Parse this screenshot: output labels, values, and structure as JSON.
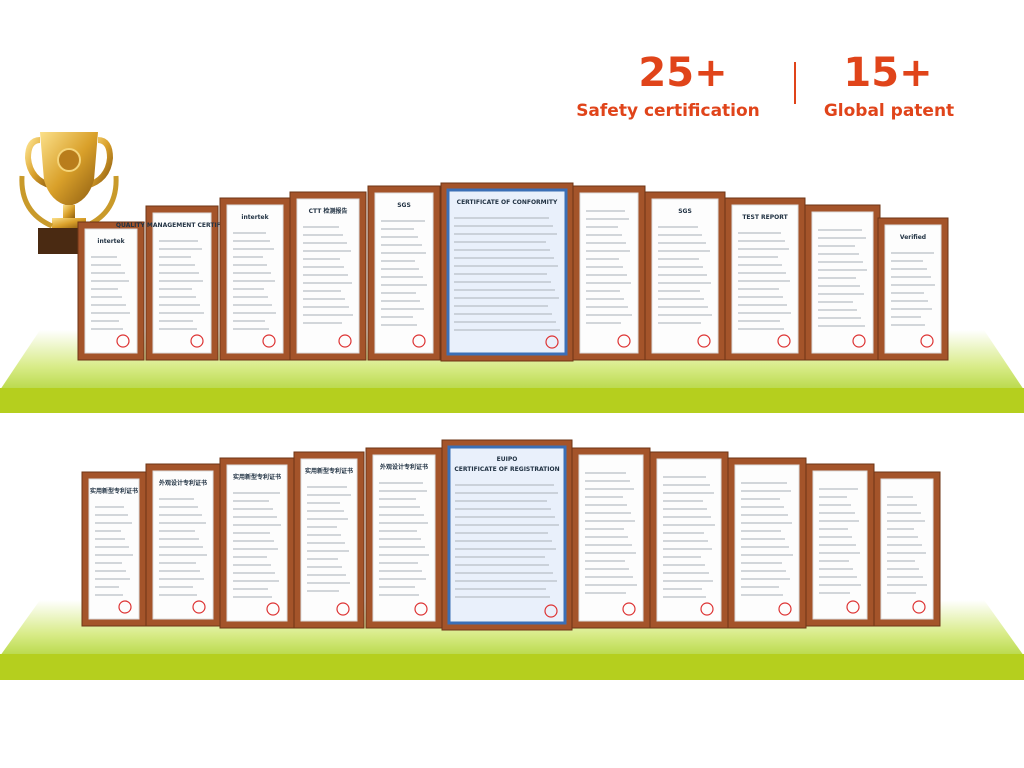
{
  "stats": [
    {
      "value": "25+",
      "label": "Safety certification"
    },
    {
      "value": "15+",
      "label": "Global patent"
    }
  ],
  "shelf_1": {
    "certificates": [
      "intertek",
      "QUALITY MANAGEMENT CERTIFICATION",
      "intertek",
      "CTT 检测报告",
      "SGS",
      "CERTIFICATE OF CONFORMITY",
      "SGS",
      "TEST REPORT",
      "Verified"
    ]
  },
  "shelf_2": {
    "certificates": [
      "实用新型专利证书",
      "外观设计专利证书",
      "实用新型专利证书",
      "实用新型专利证书",
      "外观设计专利证书",
      "EUIPO",
      "CERTIFICATE OF REGISTRATION"
    ]
  }
}
